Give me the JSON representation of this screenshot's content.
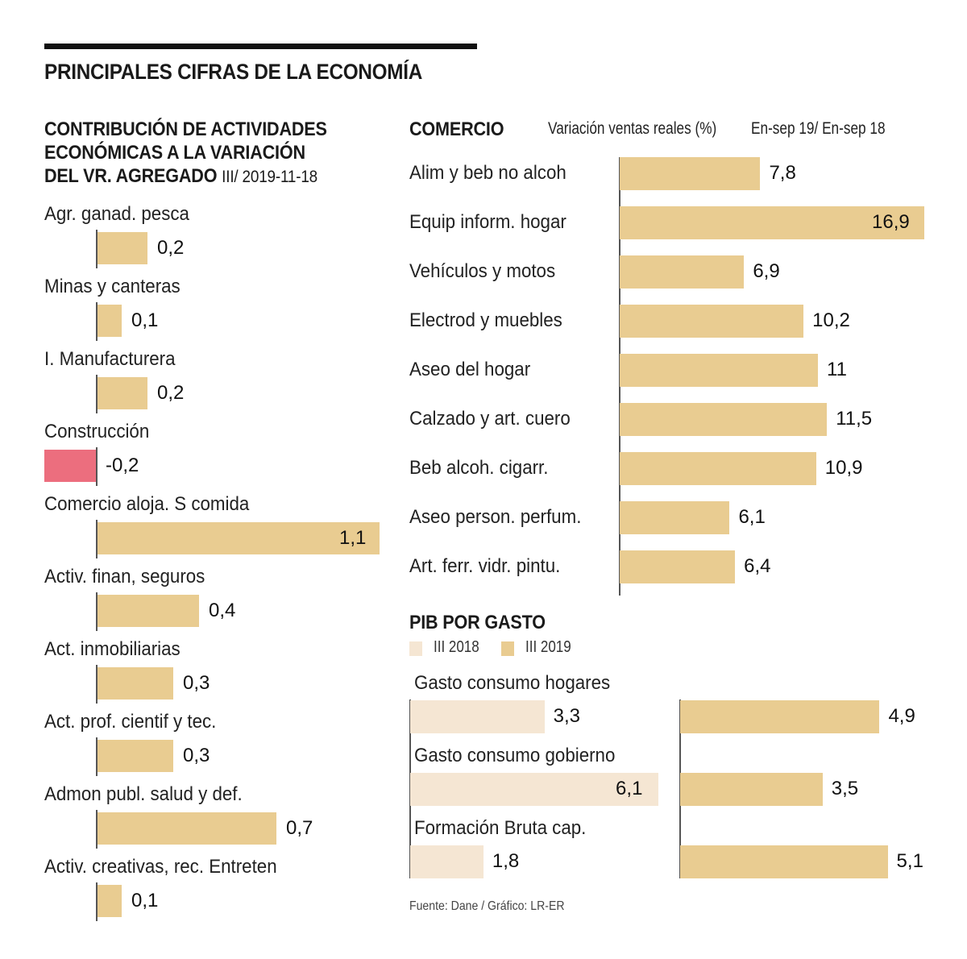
{
  "header": {
    "title": "PRINCIPALES CIFRAS DE LA ECONOMÍA"
  },
  "colors": {
    "positive": "#E9CC91",
    "negative": "#EC6E7E",
    "light": "#F5E6D3",
    "axis": "#555555"
  },
  "chart_data": [
    {
      "type": "bar",
      "orientation": "horizontal",
      "title_lines": [
        "CONTRIBUCIÓN DE ACTIVIDADES",
        "ECONÓMICAS A LA VARIACIÓN",
        "DEL VR. AGREGADO"
      ],
      "subtitle": "III/ 2019-11-18",
      "categories": [
        "Agr. ganad. pesca",
        "Minas y canteras",
        "I. Manufacturera",
        "Construcción",
        "Comercio aloja. S comida",
        "Activ. finan, seguros",
        "Act. inmobiliarias",
        "Act. prof. cientif y tec.",
        "Admon publ. salud y def.",
        "Activ. creativas, rec. Entreten"
      ],
      "values": [
        0.2,
        0.1,
        0.2,
        -0.2,
        1.1,
        0.4,
        0.3,
        0.3,
        0.7,
        0.1
      ],
      "labels": [
        "0,2",
        "0,1",
        "0,2",
        "-0,2",
        "1,1",
        "0,4",
        "0,3",
        "0,3",
        "0,7",
        "0,1"
      ],
      "xlim": [
        -0.2,
        1.1
      ]
    },
    {
      "type": "bar",
      "orientation": "horizontal",
      "title": "COMERCIO",
      "ylabel": "Variación ventas reales (%)",
      "period": "En-sep 19/ En-sep 18",
      "categories": [
        "Alim y beb no alcoh",
        "Equip inform. hogar",
        "Vehículos y motos",
        "Electrod y muebles",
        "Aseo del hogar",
        "Calzado y art. cuero",
        "Beb alcoh. cigarr.",
        "Aseo person. perfum.",
        "Art. ferr. vidr. pintu."
      ],
      "values": [
        7.8,
        16.9,
        6.9,
        10.2,
        11,
        11.5,
        10.9,
        6.1,
        6.4
      ],
      "labels": [
        "7,8",
        "16,9",
        "6,9",
        "10,2",
        "11",
        "11,5",
        "10,9",
        "6,1",
        "6,4"
      ],
      "xlim": [
        0,
        16.9
      ]
    },
    {
      "type": "bar",
      "orientation": "horizontal",
      "title": "PIB POR GASTO",
      "legend": [
        "III 2018",
        "III 2019"
      ],
      "categories": [
        "Gasto consumo hogares",
        "Gasto consumo gobierno",
        "Formación Bruta cap."
      ],
      "series": [
        {
          "name": "III 2018",
          "values": [
            3.3,
            6.1,
            1.8
          ],
          "labels": [
            "3,3",
            "6,1",
            "1,8"
          ]
        },
        {
          "name": "III 2019",
          "values": [
            4.9,
            3.5,
            5.1
          ],
          "labels": [
            "4,9",
            "3,5",
            "5,1"
          ]
        }
      ],
      "xlim": [
        0,
        6.1
      ]
    }
  ],
  "footer": {
    "source": "Fuente: Dane / Gráfico: LR-ER"
  }
}
